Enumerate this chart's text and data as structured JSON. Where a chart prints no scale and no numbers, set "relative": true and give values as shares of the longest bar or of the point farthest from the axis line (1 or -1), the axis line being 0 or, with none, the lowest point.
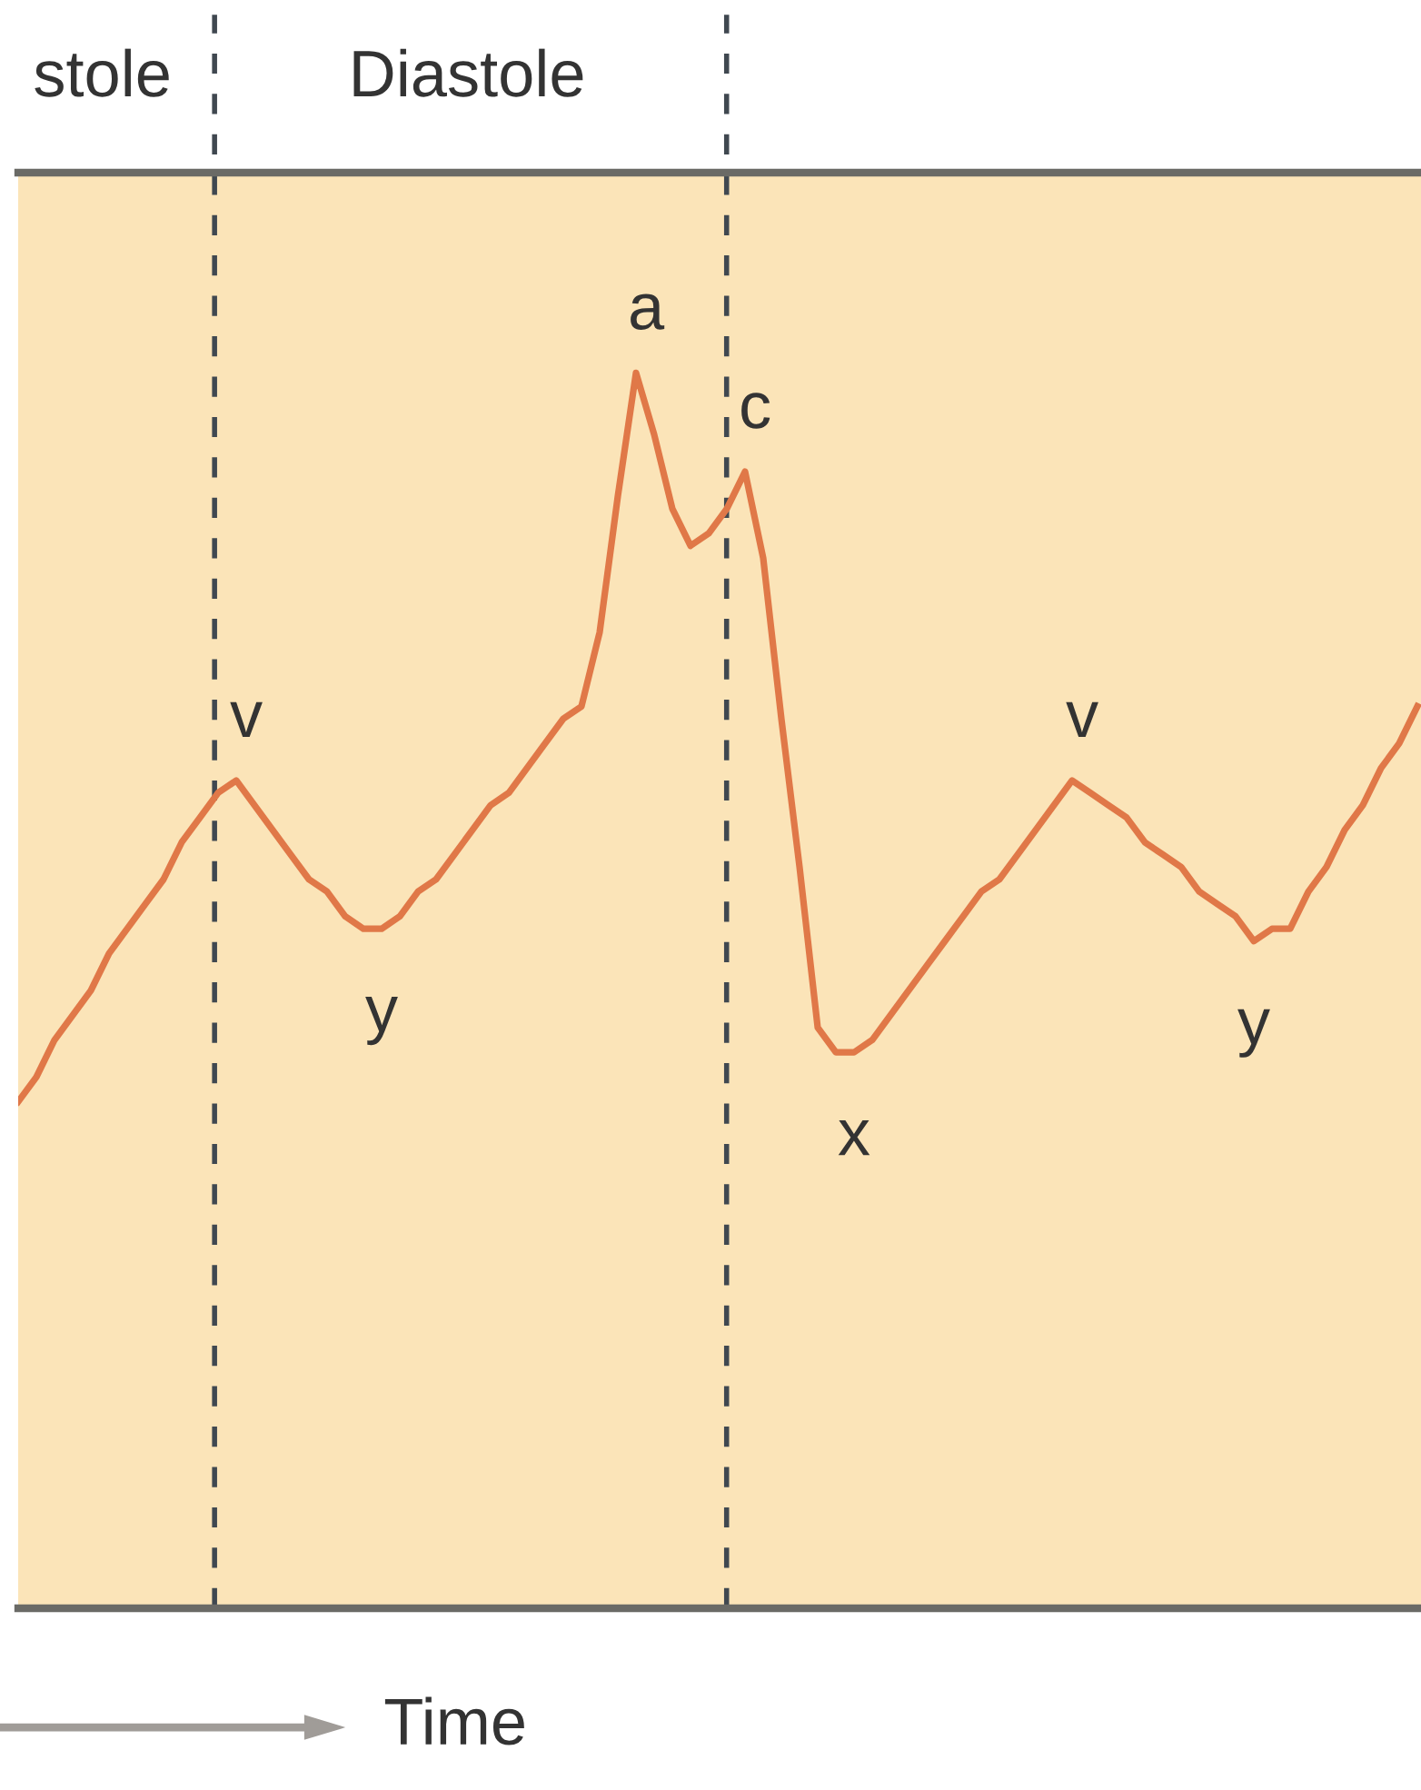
{
  "chart_data": {
    "type": "line",
    "relative": true,
    "legend": false,
    "marker": "none",
    "line_style": "solid",
    "categories": [
      null,
      null,
      null,
      null,
      null,
      null,
      null,
      null,
      null,
      null,
      null,
      null,
      null,
      null,
      null,
      null,
      null,
      null,
      null,
      null,
      null,
      null,
      null,
      null,
      null,
      null,
      null,
      null,
      null,
      null,
      null,
      null,
      null,
      null,
      null,
      null,
      null,
      null,
      null,
      null,
      null,
      null,
      null,
      null,
      null,
      null,
      null,
      null,
      null,
      null,
      null,
      null,
      null,
      null,
      null,
      null,
      null,
      null,
      null,
      null,
      null,
      null,
      null,
      null,
      null,
      null,
      null,
      null,
      null,
      null,
      null,
      null,
      null,
      null,
      null,
      null,
      null,
      null
    ],
    "series": [
      {
        "color": "#e07848",
        "values": [
          0.41,
          0.43,
          0.46,
          0.48,
          0.5,
          0.53,
          0.55,
          0.57,
          0.59,
          0.62,
          0.64,
          0.66,
          0.67,
          0.65,
          0.63,
          0.61,
          0.59,
          0.58,
          0.56,
          0.55,
          0.55,
          0.56,
          0.58,
          0.59,
          0.61,
          0.63,
          0.65,
          0.66,
          0.68,
          0.7,
          0.72,
          0.73,
          0.79,
          0.9,
          1.0,
          0.95,
          0.89,
          0.86,
          0.87,
          0.89,
          0.92,
          0.85,
          0.72,
          0.6,
          0.47,
          0.45,
          0.45,
          0.46,
          0.48,
          0.5,
          0.52,
          0.54,
          0.56,
          0.58,
          0.59,
          0.61,
          0.63,
          0.65,
          0.67,
          0.66,
          0.65,
          0.64,
          0.62,
          0.61,
          0.6,
          0.58,
          0.57,
          0.56,
          0.54,
          0.55,
          0.55,
          0.58,
          0.6,
          0.63,
          0.65,
          0.68,
          0.7,
          0.73
        ]
      }
    ],
    "annotations": [
      "stole",
      "Diastole",
      "Time",
      {
        "text": "v",
        "y": 0.67
      },
      {
        "text": "y",
        "y": 0.55
      },
      {
        "text": "a",
        "y": 1.0
      },
      {
        "text": "c",
        "y": 0.92
      },
      {
        "text": "x",
        "y": 0.45
      },
      {
        "text": "v",
        "y": 0.67
      },
      {
        "text": "y",
        "y": 0.54
      }
    ]
  }
}
